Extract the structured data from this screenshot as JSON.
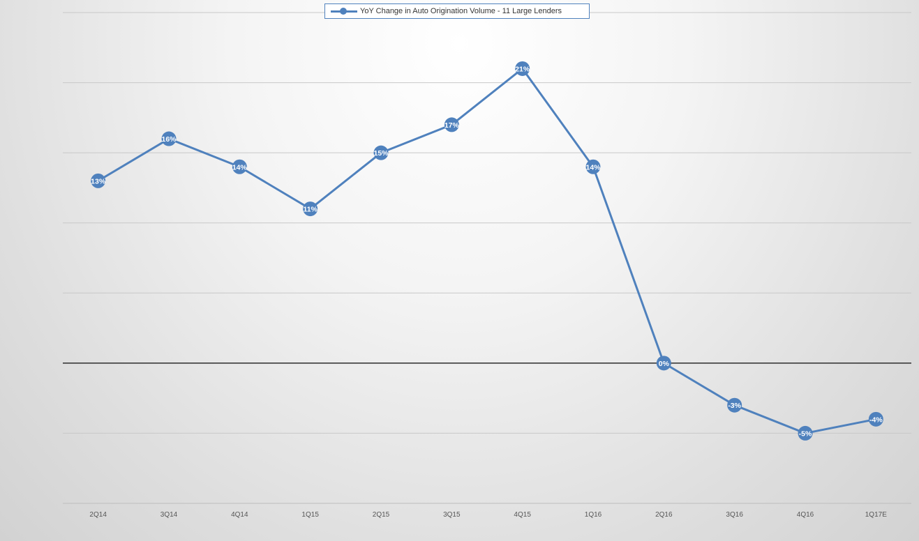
{
  "chart_data": {
    "type": "line",
    "categories": [
      "2Q14",
      "3Q14",
      "4Q14",
      "1Q15",
      "2Q15",
      "3Q15",
      "4Q15",
      "1Q16",
      "2Q16",
      "3Q16",
      "4Q16",
      "1Q17E"
    ],
    "series": [
      {
        "name": "YoY Change in Auto Origination Volume - 11 Large Lenders",
        "values": [
          0.13,
          0.16,
          0.14,
          0.11,
          0.15,
          0.17,
          0.21,
          0.14,
          0.0,
          -0.03,
          -0.05,
          -0.04
        ],
        "labels": [
          "13%",
          "16%",
          "14%",
          "11%",
          "15%",
          "17%",
          "21%",
          "14%",
          "0%",
          "-3%",
          "-5%",
          "-4%"
        ],
        "color": "#4f81bd"
      }
    ],
    "ylim": [
      -0.1,
      0.25
    ],
    "gridlines": [
      -0.1,
      -0.05,
      0.05,
      0.1,
      0.15,
      0.2,
      0.25
    ],
    "zero_line": true,
    "grid": true,
    "legend_position": "top-center",
    "title": "",
    "xlabel": "",
    "ylabel": ""
  }
}
